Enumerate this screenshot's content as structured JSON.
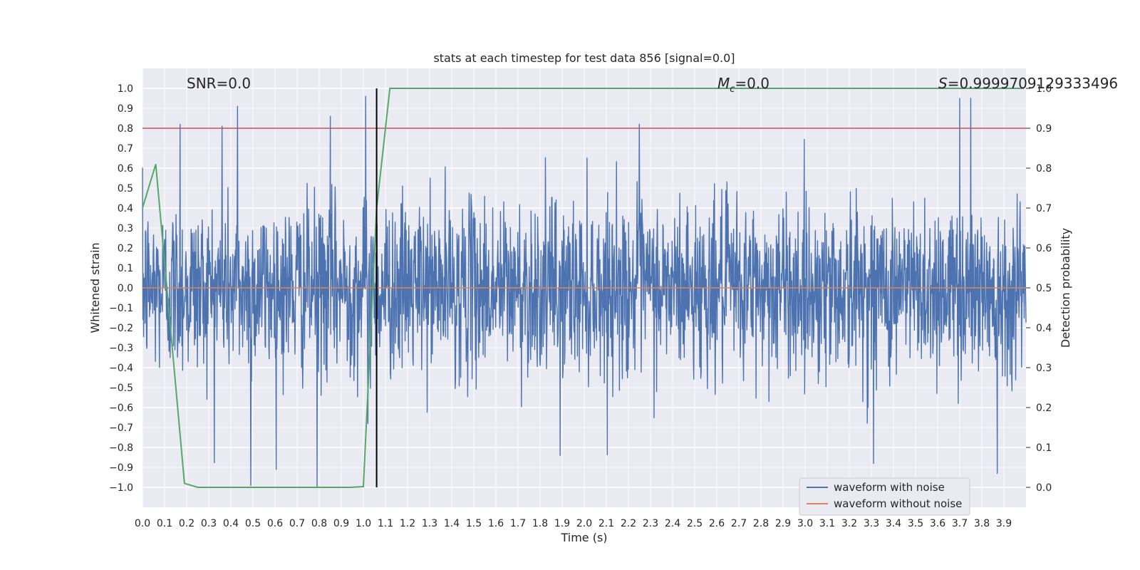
{
  "chart_data": {
    "type": "line",
    "title": "stats at each timestep for test data 856 [signal=0.0]",
    "xlabel": "Time (s)",
    "ylabel": "Whitened strain",
    "y2label": "Detection probability",
    "xlim": [
      0.0,
      4.0
    ],
    "ylim": [
      -1.1,
      1.1
    ],
    "y2lim": [
      -0.05,
      1.05
    ],
    "x_ticks": [
      "0.0",
      "0.1",
      "0.2",
      "0.3",
      "0.4",
      "0.5",
      "0.6",
      "0.7",
      "0.8",
      "0.9",
      "1.0",
      "1.1",
      "1.2",
      "1.3",
      "1.4",
      "1.5",
      "1.6",
      "1.7",
      "1.8",
      "1.9",
      "2.0",
      "2.1",
      "2.2",
      "2.3",
      "2.4",
      "2.5",
      "2.6",
      "2.7",
      "2.8",
      "2.9",
      "3.0",
      "3.1",
      "3.2",
      "3.3",
      "3.4",
      "3.5",
      "3.6",
      "3.7",
      "3.8",
      "3.9"
    ],
    "y_ticks": [
      "1.0",
      "0.9",
      "0.8",
      "0.7",
      "0.6",
      "0.5",
      "0.4",
      "0.3",
      "0.2",
      "0.1",
      "0.0",
      "−0.1",
      "−0.2",
      "−0.3",
      "−0.4",
      "−0.5",
      "−0.6",
      "−0.7",
      "−0.8",
      "−0.9",
      "−1.0"
    ],
    "y2_ticks": [
      "1.0",
      "0.9",
      "0.8",
      "0.7",
      "0.6",
      "0.5",
      "0.4",
      "0.3",
      "0.2",
      "0.1",
      "0.0"
    ],
    "grid": true,
    "legend_position": "lower-right",
    "annotations": {
      "snr": "SNR=0.0",
      "mc_symbol": "M",
      "mc_sub": "c",
      "mc_value": "=0.0",
      "s_symbol": "S",
      "s_value": "=0.9999709129333496"
    },
    "threshold_y2": 0.9,
    "marker_x": 1.06,
    "series": [
      {
        "name": "waveform with noise",
        "color": "#4c72b0",
        "style": "noise",
        "amplitude_typical": 0.35,
        "amplitude_max": 1.0,
        "spikes": [
          {
            "x": 0.17,
            "y": 0.82
          },
          {
            "x": 0.36,
            "y": 0.81
          },
          {
            "x": 0.43,
            "y": 0.91
          },
          {
            "x": 0.49,
            "y": -0.99
          },
          {
            "x": 0.79,
            "y": -1.0
          },
          {
            "x": 0.85,
            "y": 0.86
          },
          {
            "x": 1.01,
            "y": 0.96
          },
          {
            "x": 1.02,
            "y": -0.68
          },
          {
            "x": 1.89,
            "y": -0.84
          },
          {
            "x": 2.25,
            "y": 0.82
          },
          {
            "x": 3.31,
            "y": -0.88
          },
          {
            "x": 3.7,
            "y": 0.95
          },
          {
            "x": 3.75,
            "y": 0.95
          },
          {
            "x": 3.87,
            "y": -0.93
          }
        ]
      },
      {
        "name": "waveform without noise",
        "color": "#dd8452",
        "x": [
          0.0,
          4.0
        ],
        "values": [
          0.0,
          0.0
        ]
      },
      {
        "name": "detection probability",
        "color": "#55a868",
        "axis": "right",
        "x": [
          0.0,
          0.06,
          0.19,
          0.25,
          0.5,
          0.75,
          0.94,
          1.0,
          1.06,
          1.12,
          3.99
        ],
        "values": [
          0.7,
          0.81,
          0.01,
          0.0,
          0.0,
          0.0,
          0.0,
          0.002,
          0.7,
          1.0,
          1.0
        ]
      }
    ],
    "colors": {
      "background": "#eaeaf2",
      "grid": "#ffffff",
      "threshold": "#c44e52",
      "marker": "#000000",
      "noise": "#4c72b0",
      "clean": "#dd8452",
      "probability": "#55a868"
    }
  }
}
